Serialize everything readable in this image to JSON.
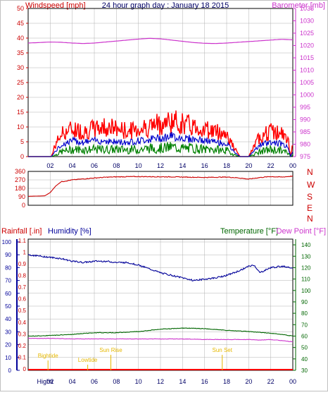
{
  "header": {
    "windspeed_label": "Windspeed [mph]",
    "title": "24 hour graph day : January 18 2015",
    "barometer_label": "Barometer [mb]"
  },
  "colors": {
    "wind": "#ff0000",
    "wind_avg": "#0000cc",
    "wind_low": "#008000",
    "barometer": "#cc33cc",
    "direction": "#cc0000",
    "humidity": "#000099",
    "temperature": "#006600",
    "dewpoint": "#cc33cc",
    "axis_label_red": "#cc0000",
    "tide": "#e6b800",
    "grid": "#b0b0b0"
  },
  "time_ticks": [
    "02",
    "04",
    "06",
    "08",
    "10",
    "12",
    "14",
    "16",
    "18",
    "20",
    "22",
    "00"
  ],
  "bottom_ticks": [
    "Highti",
    "02",
    "04",
    "06",
    "08",
    "10",
    "12",
    "14",
    "16",
    "18",
    "20",
    "22",
    "00"
  ],
  "panel1": {
    "wind_ticks": [
      "0",
      "5",
      "10",
      "15",
      "20",
      "25",
      "30",
      "35",
      "40",
      "45",
      "50"
    ],
    "baro_ticks": [
      "975",
      "980",
      "985",
      "990",
      "995",
      "1000",
      "1005",
      "1010",
      "1015",
      "1020",
      "1025",
      "1030",
      "1035"
    ]
  },
  "panel2": {
    "dir_ticks": [
      "0",
      "90",
      "180",
      "270",
      "360"
    ],
    "compass": [
      "N",
      "W",
      "S",
      "E",
      "N"
    ]
  },
  "panel3": {
    "rain_label": "Rainfall [.in]",
    "humidity_label": "Humidity [%]",
    "temperature_label": "Temperature [°F]",
    "dewpoint_label": "Dew Point [°F]",
    "humidity_ticks": [
      "0",
      "10",
      "20",
      "30",
      "40",
      "50",
      "60",
      "70",
      "80",
      "90",
      "100"
    ],
    "rain_ticks": [
      "0",
      "0.1",
      "0.2",
      "0.3",
      "0.4",
      "0.5",
      "0.6",
      "0.7",
      "0.8",
      "0.9",
      "1",
      "1.1"
    ],
    "temp_ticks": [
      "30",
      "40",
      "50",
      "60",
      "70",
      "80",
      "90",
      "100",
      "110",
      "120",
      "130",
      "140"
    ],
    "tide_events": [
      {
        "label": "Bightide",
        "hour": 1.8
      },
      {
        "label": "Lowtide",
        "hour": 5.4
      },
      {
        "label": "Sun Rise",
        "hour": 7.5
      },
      {
        "label": "Sun Set",
        "hour": 17.6
      }
    ]
  },
  "chart_data": [
    {
      "type": "line",
      "title": "24 hour graph day : January 18 2015",
      "x_unit": "hour",
      "ylabel": "Windspeed [mph]",
      "ylabel_right": "Barometer [mb]",
      "ylim": [
        0,
        50
      ],
      "ylim_right": [
        975,
        1035
      ],
      "series": [
        {
          "axis": "left",
          "x": [
            0,
            2.1,
            2.4,
            3,
            4,
            5,
            6,
            7,
            8,
            9,
            10,
            11,
            12,
            13,
            14,
            15,
            16,
            17,
            18,
            18.6,
            19.2,
            20,
            21,
            22,
            23,
            23.6,
            23.8,
            24
          ],
          "values": [
            0,
            0,
            4,
            9,
            11,
            10,
            11,
            12,
            11,
            10,
            11,
            12,
            13,
            14,
            13,
            12,
            11,
            10,
            9,
            4,
            0,
            0,
            8,
            10,
            9,
            6,
            0,
            5
          ]
        },
        {
          "axis": "left",
          "x": [
            0,
            2.1,
            2.4,
            3,
            4,
            5,
            6,
            7,
            8,
            9,
            10,
            11,
            12,
            13,
            14,
            15,
            16,
            17,
            18,
            18.6,
            19.2,
            20,
            21,
            22,
            23,
            23.6,
            23.8,
            24
          ],
          "values": [
            0,
            0,
            1.5,
            4,
            5.5,
            5,
            5.5,
            5.5,
            5,
            5,
            5.5,
            6,
            6.5,
            7,
            6.5,
            6,
            5.5,
            5,
            4.5,
            2,
            0,
            0,
            4,
            5,
            4.5,
            3,
            0,
            2
          ]
        },
        {
          "axis": "left",
          "x": [
            0,
            2.1,
            2.4,
            3,
            4,
            5,
            6,
            7,
            8,
            9,
            10,
            11,
            12,
            13,
            14,
            15,
            16,
            17,
            18,
            18.6,
            19.2,
            20,
            21,
            22,
            23,
            23.6,
            23.8,
            24
          ],
          "values": [
            0,
            0,
            0.5,
            2,
            3,
            3,
            3,
            3,
            3,
            3,
            3,
            3.5,
            3.5,
            4,
            3.5,
            3.5,
            3,
            3,
            2.5,
            1,
            0,
            0,
            2,
            3,
            2.5,
            1.5,
            0,
            1
          ]
        },
        {
          "axis": "right",
          "x": [
            0,
            1,
            2,
            3,
            4,
            5,
            6,
            7,
            8,
            9,
            10,
            11,
            12,
            13,
            14,
            15,
            16,
            17,
            18,
            19,
            20,
            21,
            22,
            23,
            24
          ],
          "values": [
            1021,
            1021.2,
            1021.4,
            1021.3,
            1021,
            1020.8,
            1021,
            1021.4,
            1021.8,
            1022.2,
            1022.6,
            1022.9,
            1022.7,
            1022.2,
            1021.7,
            1021.2,
            1020.9,
            1020.8,
            1021,
            1021.3,
            1021.6,
            1021.9,
            1022.2,
            1022.5,
            1022.3
          ]
        }
      ]
    },
    {
      "type": "line",
      "x_unit": "hour",
      "ylim": [
        0,
        360
      ],
      "series": [
        {
          "x": [
            0,
            1.5,
            2,
            2.5,
            3,
            4,
            5,
            6,
            7,
            8,
            9,
            10,
            11,
            12,
            13,
            14,
            15,
            16,
            17,
            18,
            19,
            20,
            21,
            22,
            23,
            24
          ],
          "values": [
            95,
            100,
            135,
            205,
            250,
            270,
            280,
            290,
            298,
            302,
            304,
            305,
            304,
            303,
            302,
            300,
            298,
            296,
            298,
            300,
            292,
            278,
            295,
            305,
            300,
            310
          ]
        }
      ]
    },
    {
      "type": "line",
      "x_unit": "hour",
      "ylabel": "Humidity [%]",
      "ylabel_right": "Temperature [°F]",
      "ylim": [
        0,
        100
      ],
      "ylim_right": [
        30,
        145
      ],
      "series": [
        {
          "axis": "left",
          "x": [
            0,
            1,
            2,
            3,
            4,
            5,
            6,
            7,
            8,
            9,
            10,
            11,
            12,
            13,
            14,
            15,
            16,
            17,
            18,
            19,
            20,
            20.5,
            21,
            22,
            23,
            24
          ],
          "values": [
            90,
            89,
            88,
            87,
            85,
            84,
            85,
            85,
            84,
            84,
            82,
            79,
            76,
            74,
            72,
            70,
            71,
            72,
            74,
            77,
            81,
            82,
            76,
            80,
            81,
            80
          ]
        },
        {
          "axis": "right",
          "x": [
            0,
            2,
            4,
            6,
            8,
            10,
            12,
            14,
            16,
            18,
            20,
            22,
            23,
            24
          ],
          "values": [
            60,
            60.5,
            61.5,
            63,
            63,
            64,
            66,
            67,
            66.5,
            65,
            64,
            62.5,
            61.5,
            60
          ]
        },
        {
          "axis": "right",
          "x": [
            0,
            2,
            4,
            6,
            8,
            10,
            12,
            14,
            16,
            18,
            20,
            21,
            22,
            23,
            24
          ],
          "values": [
            58,
            58,
            57.5,
            57.5,
            57.5,
            57.5,
            57.5,
            57.5,
            57,
            57,
            57,
            56.5,
            57,
            56,
            55
          ]
        }
      ]
    }
  ]
}
